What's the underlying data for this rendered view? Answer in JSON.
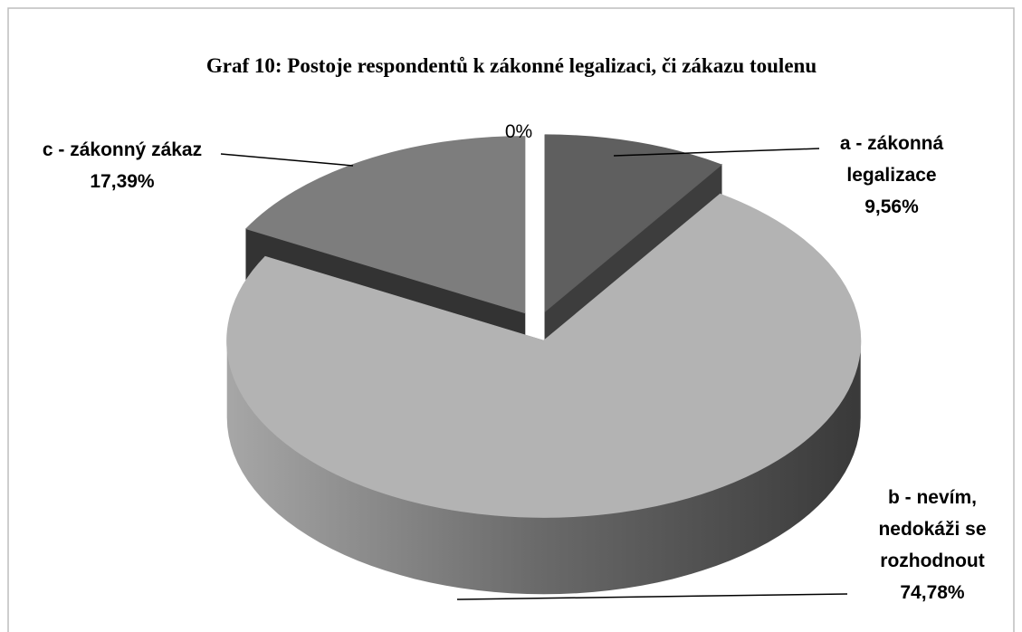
{
  "chart_data": {
    "type": "pie3d",
    "title": "Graf 10: Postoje respondentů k zákonné legalizaci, či zákazu toulenu",
    "categories": [
      "a - zákonná legalizace",
      "b - nevím, nedokáži se rozhodnout",
      "c - zákonný zákaz",
      null
    ],
    "values": [
      9.56,
      74.78,
      17.39,
      0
    ],
    "value_labels": [
      "9,56%",
      "74,78%",
      "17,39%",
      "0%"
    ],
    "colors": [
      "#5f5f5f",
      "#b3b3b3",
      "#7d7d7d",
      "#999999"
    ],
    "side_colors": [
      "#3d3d3d",
      "#777777",
      "#333333",
      "#555555"
    ]
  }
}
